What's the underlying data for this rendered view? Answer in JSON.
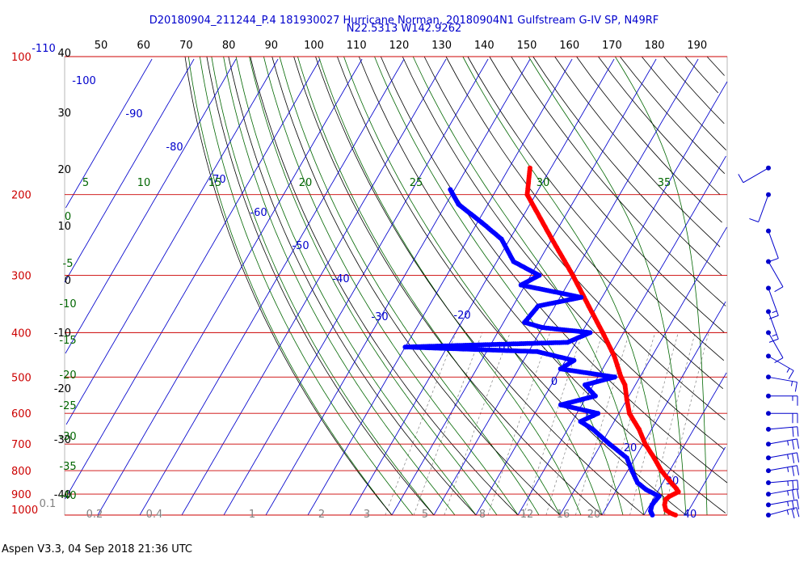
{
  "chart_data": {
    "type": "skew-t",
    "title": "D20180904_211244_P.4 181930027 Hurricane Norman, 20180904N1 Gulfstream G-IV SP, N49RF",
    "subtitle": "N22.5313 W142.9262",
    "footer": "Aspen V3.3, 04 Sep 2018  21:36 UTC",
    "pressure_levels": [
      100,
      200,
      300,
      400,
      500,
      600,
      700,
      800,
      900,
      1000
    ],
    "height_labels": [
      "40",
      "30",
      "20",
      "10",
      "0",
      "-10",
      "-20",
      "-30",
      "-40"
    ],
    "top_temperature_labels": [
      "50",
      "60",
      "70",
      "80",
      "90",
      "100",
      "110",
      "120",
      "130",
      "140",
      "150",
      "160",
      "170",
      "180",
      "190"
    ],
    "isotherm_labels": [
      "-110",
      "-100",
      "-90",
      "-80",
      "-70",
      "-60",
      "-50",
      "-40",
      "-30",
      "-20",
      "-10",
      "0",
      "10",
      "20",
      "30",
      "40"
    ],
    "theta_labels": [
      "5",
      "10",
      "15",
      "20",
      "25",
      "30",
      "35"
    ],
    "moist_adiabat_labels": [
      "0",
      "-5",
      "-10",
      "-15",
      "-20",
      "-25",
      "-30",
      "-35",
      "-40"
    ],
    "mixing_ratio_labels": [
      "0.1",
      "0.2",
      "0.4",
      "1",
      "2",
      "3",
      "5",
      "8",
      "12",
      "16",
      "20"
    ],
    "colors": {
      "temperature": "#ff0000",
      "dewpoint": "#0000ff",
      "isobar": "#cc0000",
      "isotherm": "#0000cc",
      "dry_adiabat": "#000000",
      "moist_adiabat": "#006600",
      "mixing_ratio": "#808080"
    },
    "temperature_profile": [
      {
        "p": 1000,
        "t": 27.5
      },
      {
        "p": 990,
        "t": 26
      },
      {
        "p": 975,
        "t": 24.5
      },
      {
        "p": 950,
        "t": 23.5
      },
      {
        "p": 925,
        "t": 23
      },
      {
        "p": 910,
        "t": 23.5
      },
      {
        "p": 890,
        "t": 25
      },
      {
        "p": 875,
        "t": 24
      },
      {
        "p": 850,
        "t": 22
      },
      {
        "p": 800,
        "t": 18
      },
      {
        "p": 750,
        "t": 14.5
      },
      {
        "p": 700,
        "t": 10.5
      },
      {
        "p": 650,
        "t": 7
      },
      {
        "p": 600,
        "t": 2.5
      },
      {
        "p": 560,
        "t": 0
      },
      {
        "p": 520,
        "t": -2.5
      },
      {
        "p": 500,
        "t": -4.5
      },
      {
        "p": 450,
        "t": -9
      },
      {
        "p": 400,
        "t": -15
      },
      {
        "p": 350,
        "t": -22
      },
      {
        "p": 300,
        "t": -30
      },
      {
        "p": 250,
        "t": -40
      },
      {
        "p": 200,
        "t": -52
      },
      {
        "p": 175,
        "t": -55
      }
    ],
    "dewpoint_profile": [
      {
        "p": 1000,
        "td": 22
      },
      {
        "p": 980,
        "td": 21
      },
      {
        "p": 950,
        "td": 20.5
      },
      {
        "p": 910,
        "td": 21
      },
      {
        "p": 880,
        "td": 17
      },
      {
        "p": 850,
        "td": 14
      },
      {
        "p": 800,
        "td": 11
      },
      {
        "p": 750,
        "td": 8
      },
      {
        "p": 700,
        "td": 2
      },
      {
        "p": 650,
        "td": -4
      },
      {
        "p": 625,
        "td": -8
      },
      {
        "p": 600,
        "td": -5
      },
      {
        "p": 575,
        "td": -15
      },
      {
        "p": 550,
        "td": -8
      },
      {
        "p": 520,
        "td": -12
      },
      {
        "p": 500,
        "td": -6
      },
      {
        "p": 480,
        "td": -20
      },
      {
        "p": 460,
        "td": -18
      },
      {
        "p": 440,
        "td": -28
      },
      {
        "p": 430,
        "td": -60
      },
      {
        "p": 420,
        "td": -22
      },
      {
        "p": 400,
        "td": -18
      },
      {
        "p": 390,
        "td": -30
      },
      {
        "p": 380,
        "td": -35
      },
      {
        "p": 350,
        "td": -34
      },
      {
        "p": 335,
        "td": -25
      },
      {
        "p": 315,
        "td": -41
      },
      {
        "p": 300,
        "td": -38
      },
      {
        "p": 280,
        "td": -46
      },
      {
        "p": 250,
        "td": -52
      },
      {
        "p": 230,
        "td": -59
      },
      {
        "p": 210,
        "td": -67
      },
      {
        "p": 195,
        "td": -71
      }
    ],
    "wind_barbs": [
      {
        "p": 175,
        "dir": 240,
        "kt": 10
      },
      {
        "p": 200,
        "dir": 200,
        "kt": 10
      },
      {
        "p": 240,
        "dir": 160,
        "kt": 10
      },
      {
        "p": 280,
        "dir": 150,
        "kt": 10
      },
      {
        "p": 320,
        "dir": 160,
        "kt": 15
      },
      {
        "p": 360,
        "dir": 160,
        "kt": 15
      },
      {
        "p": 400,
        "dir": 150,
        "kt": 10
      },
      {
        "p": 450,
        "dir": 120,
        "kt": 15
      },
      {
        "p": 500,
        "dir": 100,
        "kt": 15
      },
      {
        "p": 550,
        "dir": 90,
        "kt": 15
      },
      {
        "p": 600,
        "dir": 90,
        "kt": 20
      },
      {
        "p": 650,
        "dir": 85,
        "kt": 20
      },
      {
        "p": 700,
        "dir": 80,
        "kt": 25
      },
      {
        "p": 750,
        "dir": 80,
        "kt": 25
      },
      {
        "p": 800,
        "dir": 80,
        "kt": 25
      },
      {
        "p": 850,
        "dir": 85,
        "kt": 25
      },
      {
        "p": 900,
        "dir": 80,
        "kt": 25
      },
      {
        "p": 950,
        "dir": 80,
        "kt": 25
      },
      {
        "p": 1000,
        "dir": 75,
        "kt": 25
      }
    ]
  }
}
